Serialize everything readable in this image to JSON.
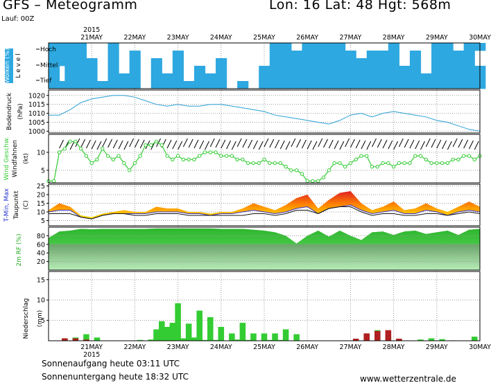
{
  "header": {
    "title": "GFS – Meteogramm",
    "location": "Lon: 16 Lat: 48 Hgt: 568m",
    "run": "Lauf: 00Z",
    "year": "2015"
  },
  "footer": {
    "sunrise": "Sonnenaufgang heute 03:11 UTC",
    "sunset": "Sonnenuntergang heute 18:32 UTC",
    "url": "www.wetterzentrale.de"
  },
  "days": [
    "21MAY",
    "22MAY",
    "23MAY",
    "24MAY",
    "25MAY",
    "26MAY",
    "27MAY",
    "28MAY",
    "29MAY",
    "30MAY"
  ],
  "colors": {
    "cloud": "#2ea8e0",
    "pressure": "#2a9fd6",
    "wind_line": "#33cc33",
    "dew": "#111111",
    "humidity_dark": "#22bb22",
    "humidity_light": "#5ee05e",
    "precip": "#33cc33",
    "precip_conv": "#b02020",
    "grid": "#9a9a9a"
  },
  "chart_data": [
    {
      "type": "heatmap",
      "id": "clouds",
      "ylabel_rotated": "Wolken (%)",
      "level_label_rotated": "L e v e l",
      "levels": [
        "Hoch",
        "Mittel",
        "Tief"
      ],
      "times_h": [
        0,
        6,
        12,
        18,
        24,
        30,
        36,
        42,
        48,
        54,
        60,
        66,
        72,
        78,
        84,
        90,
        96,
        102,
        108,
        114,
        120,
        126,
        132,
        138,
        144,
        150,
        156,
        162,
        168,
        174,
        180,
        186,
        192,
        198,
        204,
        210,
        216,
        222,
        228,
        234,
        240
      ],
      "rows": [
        [
          1,
          1,
          1,
          1,
          0,
          0,
          1,
          0,
          0,
          0,
          0,
          0,
          0,
          0,
          0,
          0,
          0,
          0,
          0,
          0,
          0,
          1,
          1,
          0,
          1,
          1,
          1,
          1,
          0,
          0,
          0,
          0,
          1,
          0,
          0,
          0,
          1,
          1,
          0,
          1,
          1
        ],
        [
          1,
          1,
          1,
          1,
          0,
          0,
          1,
          0,
          1,
          0,
          0,
          0,
          1,
          0,
          0,
          0,
          0,
          0,
          0,
          0,
          0,
          1,
          1,
          1,
          1,
          1,
          1,
          1,
          1,
          0,
          1,
          1,
          1,
          0,
          1,
          0,
          1,
          1,
          1,
          1,
          0
        ],
        [
          1,
          1,
          1,
          1,
          1,
          0,
          1,
          0,
          1,
          0,
          1,
          0,
          1,
          0,
          0,
          0,
          1,
          0,
          0,
          0,
          0,
          1,
          1,
          1,
          1,
          1,
          1,
          1,
          1,
          1,
          1,
          1,
          1,
          0,
          1,
          0,
          1,
          1,
          1,
          1,
          0
        ],
        [
          1,
          0,
          1,
          1,
          1,
          0,
          1,
          0,
          1,
          0,
          1,
          0,
          1,
          0,
          1,
          0,
          1,
          0,
          0,
          0,
          1,
          1,
          1,
          1,
          1,
          1,
          1,
          1,
          1,
          1,
          1,
          1,
          1,
          1,
          1,
          0,
          1,
          1,
          1,
          1,
          1
        ],
        [
          1,
          0,
          1,
          1,
          1,
          0,
          1,
          1,
          1,
          0,
          1,
          1,
          1,
          0,
          1,
          1,
          1,
          0,
          0,
          0,
          1,
          1,
          1,
          1,
          1,
          1,
          1,
          1,
          1,
          1,
          1,
          1,
          1,
          1,
          1,
          1,
          1,
          1,
          1,
          1,
          1
        ],
        [
          1,
          1,
          1,
          1,
          1,
          1,
          1,
          1,
          1,
          0,
          1,
          1,
          1,
          1,
          1,
          1,
          1,
          0,
          1,
          0,
          1,
          1,
          1,
          1,
          1,
          1,
          1,
          1,
          1,
          1,
          1,
          1,
          1,
          1,
          1,
          1,
          1,
          1,
          1,
          1,
          1
        ]
      ]
    },
    {
      "type": "line",
      "id": "pressure",
      "ylabel_rotated": "Bodendruck",
      "unit": "(hPa)",
      "yticks": [
        1000,
        1005,
        1010,
        1015,
        1020
      ],
      "ylim": [
        999,
        1023
      ],
      "x_h": [
        0,
        6,
        12,
        18,
        24,
        30,
        36,
        42,
        48,
        54,
        60,
        66,
        72,
        78,
        84,
        90,
        96,
        102,
        108,
        114,
        120,
        126,
        132,
        138,
        144,
        150,
        156,
        162,
        168,
        174,
        180,
        186,
        192,
        198,
        204,
        210,
        216,
        222,
        228,
        234,
        240
      ],
      "values": [
        1009,
        1009,
        1012,
        1016,
        1018,
        1019,
        1020,
        1020,
        1019,
        1017,
        1015,
        1014,
        1015,
        1014,
        1014,
        1015,
        1015,
        1014,
        1013,
        1012,
        1011,
        1009,
        1008,
        1007,
        1006,
        1005,
        1004,
        1006,
        1009,
        1010,
        1008,
        1010,
        1011,
        1010,
        1009,
        1008,
        1006,
        1005,
        1003,
        1001,
        1000
      ]
    },
    {
      "type": "line",
      "id": "wind",
      "ylabel_rotated": "Wind Geschw.",
      "ylabel2_rotated": "Windfahnen",
      "unit": "(kt)",
      "yticks": [
        5,
        10
      ],
      "ylim": [
        1.5,
        15
      ],
      "x_h": [
        0,
        3,
        6,
        9,
        12,
        15,
        18,
        21,
        24,
        27,
        30,
        33,
        36,
        39,
        42,
        45,
        48,
        51,
        54,
        57,
        60,
        63,
        66,
        69,
        72,
        75,
        78,
        81,
        84,
        87,
        90,
        93,
        96,
        99,
        102,
        105,
        108,
        111,
        114,
        117,
        120,
        123,
        126,
        129,
        132,
        135,
        138,
        141,
        144,
        147,
        150,
        153,
        156,
        159,
        162,
        165,
        168,
        171,
        174,
        177,
        180,
        183,
        186,
        189,
        192,
        195,
        198,
        201,
        204,
        207,
        210,
        213,
        216,
        219,
        222,
        225,
        228,
        231,
        234,
        237,
        240
      ],
      "values": [
        2,
        2,
        10,
        11,
        13,
        13,
        11,
        9,
        7,
        8,
        11,
        9,
        8,
        9,
        7,
        5,
        7,
        9,
        12,
        12,
        13,
        12,
        9,
        8,
        9,
        8,
        8,
        8,
        9,
        10,
        10,
        10,
        9,
        9,
        9,
        8,
        8,
        7,
        7,
        7,
        8,
        7,
        7,
        7,
        6,
        5,
        5,
        4,
        2,
        2,
        2,
        3,
        5,
        7,
        7,
        6,
        7,
        8,
        9,
        9,
        6,
        6,
        7,
        7,
        6,
        7,
        7,
        7,
        9,
        9,
        8,
        7,
        7,
        7,
        7,
        8,
        8,
        9,
        9,
        8,
        9
      ]
    },
    {
      "type": "area",
      "id": "temperature",
      "ylabel_rotated": "T-Min, Max",
      "ylabel2_rotated": "Taupunkt",
      "unit": "(C)",
      "yticks": [
        5,
        10,
        15,
        20,
        25
      ],
      "ylim": [
        2,
        26
      ],
      "x_h": [
        0,
        6,
        12,
        18,
        24,
        30,
        36,
        42,
        48,
        54,
        60,
        66,
        72,
        78,
        84,
        90,
        96,
        102,
        108,
        114,
        120,
        126,
        132,
        138,
        144,
        150,
        156,
        162,
        168,
        174,
        180,
        186,
        192,
        198,
        204,
        210,
        216,
        222,
        228,
        234,
        240
      ],
      "t_max": [
        11,
        15,
        13,
        8,
        7,
        9,
        10,
        11,
        10,
        10,
        13,
        12,
        12,
        10,
        10,
        9,
        10,
        10,
        12,
        15,
        13,
        11,
        14,
        18,
        20,
        12,
        17,
        21,
        22,
        15,
        11,
        13,
        16,
        11,
        12,
        15,
        12,
        10,
        13,
        16,
        13
      ],
      "t_min": [
        10,
        11,
        11,
        7,
        6,
        8,
        9,
        9,
        9,
        9,
        10,
        10,
        10,
        9,
        9,
        8,
        9,
        9,
        10,
        11,
        10,
        9,
        10,
        12,
        13,
        9,
        12,
        13,
        14,
        11,
        9,
        10,
        11,
        9,
        9,
        11,
        10,
        8,
        10,
        11,
        10
      ],
      "dewpoint": [
        9,
        9,
        9,
        7,
        6,
        8,
        9,
        9,
        8,
        8,
        9,
        9,
        9,
        8,
        8,
        8,
        8,
        8,
        8,
        9,
        9,
        8,
        9,
        11,
        11,
        9,
        12,
        13,
        13,
        10,
        8,
        9,
        9,
        8,
        8,
        9,
        9,
        8,
        9,
        10,
        9
      ]
    },
    {
      "type": "area",
      "id": "humidity",
      "ylabel_rotated": "2m RF (%)",
      "yticks": [
        20,
        40,
        60,
        80
      ],
      "ylim": [
        0,
        100
      ],
      "x_h": [
        0,
        6,
        12,
        18,
        24,
        30,
        36,
        42,
        48,
        54,
        60,
        66,
        72,
        78,
        84,
        90,
        96,
        102,
        108,
        114,
        120,
        126,
        132,
        138,
        144,
        150,
        156,
        162,
        168,
        174,
        180,
        186,
        192,
        198,
        204,
        210,
        216,
        222,
        228,
        234,
        240
      ],
      "values": [
        75,
        90,
        92,
        96,
        95,
        96,
        96,
        96,
        96,
        96,
        97,
        97,
        97,
        97,
        97,
        97,
        96,
        96,
        96,
        94,
        92,
        88,
        80,
        62,
        80,
        92,
        78,
        92,
        80,
        70,
        88,
        90,
        82,
        90,
        92,
        84,
        88,
        92,
        82,
        94,
        96
      ]
    },
    {
      "type": "bar",
      "id": "precip",
      "ylabel_rotated": "Niederschlag",
      "unit": "(mm)",
      "yticks": [
        5,
        10,
        15
      ],
      "ylim": [
        0,
        17
      ],
      "x_h": [
        9,
        15,
        21,
        27,
        33,
        39,
        51,
        57,
        63,
        69,
        75,
        81,
        87,
        93,
        99,
        105,
        111,
        117,
        123,
        129,
        135,
        141,
        147,
        153,
        159,
        165,
        171,
        177,
        183,
        189,
        195,
        201,
        207,
        213,
        219,
        225,
        231,
        237
      ],
      "values": [
        0.6,
        0.8,
        1.6,
        0.8,
        0,
        0,
        0.2,
        0.3,
        4.8,
        4.4,
        0.6,
        0.8,
        0.2,
        0.2,
        0,
        0.3,
        0.2,
        0,
        0.2,
        0.2,
        0,
        0,
        0,
        0,
        0,
        0.1,
        0,
        1.8,
        2.6,
        1.4,
        0.5,
        0,
        0.3,
        0.6,
        0.4,
        0.1,
        0,
        1.0
      ],
      "x2_h": [
        60,
        66,
        72,
        78,
        84,
        90,
        96,
        102,
        108,
        114,
        120,
        126,
        132,
        138
      ],
      "values2": [
        2.8,
        3.4,
        9.2,
        4.2,
        7.4,
        5.8,
        3.4,
        1.8,
        4.4,
        1.8,
        1.8,
        1.8,
        2.8,
        1.6
      ],
      "conv_x_h": [
        9,
        15,
        21,
        171,
        177,
        183,
        189,
        195
      ],
      "conv_values": [
        0.6,
        0.6,
        0.3,
        0.5,
        1.8,
        2.4,
        2.6,
        0.5
      ]
    }
  ]
}
